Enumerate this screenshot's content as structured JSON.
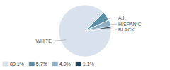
{
  "chart_data": {
    "type": "pie",
    "categories": [
      "WHITE",
      "A.I.",
      "HISPANIC",
      "BLACK"
    ],
    "values": [
      89.1,
      5.7,
      4.0,
      1.1
    ],
    "value_labels": [
      "89.1%",
      "5.7%",
      "4.0%",
      "1.1%"
    ],
    "colors": [
      "#d9e2ec",
      "#5b8fa8",
      "#8fafc4",
      "#1e3f5a"
    ],
    "legend": "lower left"
  }
}
